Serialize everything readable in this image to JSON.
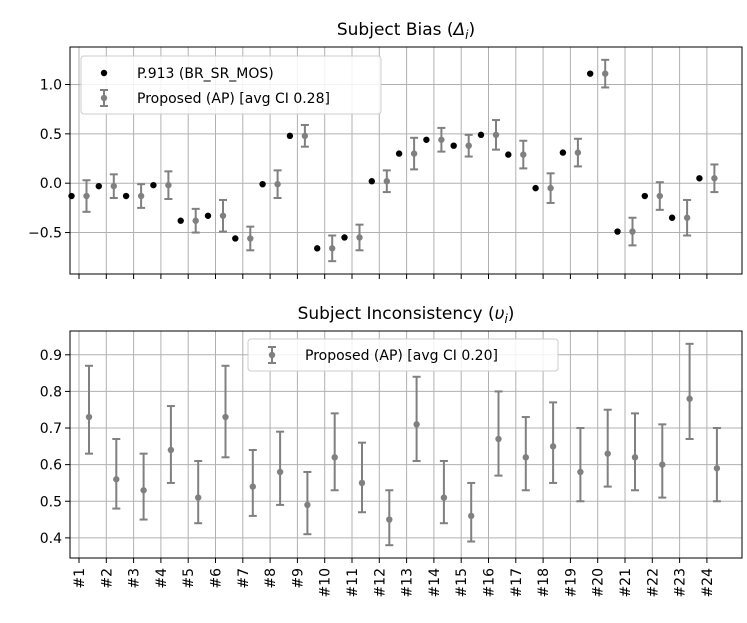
{
  "chart_data": [
    {
      "type": "scatter",
      "title": "Subject Bias (Δᵢ)",
      "title_parts": {
        "text": "Subject Bias (",
        "symbol": "Δ",
        "sub": "i",
        "close": ")"
      },
      "xlabel": "",
      "ylabel": "",
      "ylim": [
        -0.92,
        1.38
      ],
      "yticks": [
        -0.5,
        0.0,
        0.5,
        1.0
      ],
      "yticklabels": [
        "−0.5",
        "0.0",
        "0.5",
        "1.0"
      ],
      "grid": true,
      "legend_position": "top-left",
      "categories": [
        "#1",
        "#2",
        "#3",
        "#4",
        "#5",
        "#6",
        "#7",
        "#8",
        "#9",
        "#10",
        "#11",
        "#12",
        "#13",
        "#14",
        "#15",
        "#16",
        "#17",
        "#18",
        "#19",
        "#20",
        "#21",
        "#22",
        "#23",
        "#24"
      ],
      "series": [
        {
          "name": "P.913 (BR_SR_MOS)",
          "color": "#000000",
          "values": [
            -0.13,
            -0.03,
            -0.13,
            -0.02,
            -0.38,
            -0.33,
            -0.56,
            -0.01,
            0.48,
            -0.66,
            -0.55,
            0.02,
            0.3,
            0.44,
            0.38,
            0.49,
            0.29,
            -0.05,
            0.31,
            1.11,
            -0.49,
            -0.13,
            -0.35,
            0.05
          ]
        },
        {
          "name": "Proposed (AP) [avg CI 0.28]",
          "color": "#808080",
          "values": [
            -0.13,
            -0.03,
            -0.13,
            -0.02,
            -0.38,
            -0.33,
            -0.56,
            -0.01,
            0.48,
            -0.66,
            -0.55,
            0.02,
            0.3,
            0.44,
            0.38,
            0.49,
            0.29,
            -0.05,
            0.31,
            1.11,
            -0.49,
            -0.13,
            -0.35,
            0.05
          ],
          "ci_half": [
            0.16,
            0.12,
            0.12,
            0.14,
            0.12,
            0.16,
            0.12,
            0.14,
            0.11,
            0.13,
            0.13,
            0.11,
            0.16,
            0.12,
            0.11,
            0.15,
            0.14,
            0.15,
            0.14,
            0.14,
            0.14,
            0.14,
            0.18,
            0.14
          ]
        }
      ]
    },
    {
      "type": "scatter",
      "title": "Subject Inconsistency (υᵢ)",
      "title_parts": {
        "text": "Subject Inconsistency (",
        "symbol": "υ",
        "sub": "i",
        "close": ")"
      },
      "xlabel": "",
      "ylabel": "",
      "ylim": [
        0.345,
        0.965
      ],
      "yticks": [
        0.4,
        0.5,
        0.6,
        0.7,
        0.8,
        0.9
      ],
      "yticklabels": [
        "0.4",
        "0.5",
        "0.6",
        "0.7",
        "0.8",
        "0.9"
      ],
      "grid": true,
      "legend_position": "top-center",
      "categories": [
        "#1",
        "#2",
        "#3",
        "#4",
        "#5",
        "#6",
        "#7",
        "#8",
        "#9",
        "#10",
        "#11",
        "#12",
        "#13",
        "#14",
        "#15",
        "#16",
        "#17",
        "#18",
        "#19",
        "#20",
        "#21",
        "#22",
        "#23",
        "#24"
      ],
      "series": [
        {
          "name": "Proposed (AP) [avg CI 0.20]",
          "color": "#808080",
          "values": [
            0.73,
            0.56,
            0.53,
            0.64,
            0.51,
            0.73,
            0.54,
            0.58,
            0.49,
            0.62,
            0.55,
            0.45,
            0.71,
            0.51,
            0.46,
            0.67,
            0.62,
            0.65,
            0.58,
            0.63,
            0.62,
            0.6,
            0.78,
            0.59
          ],
          "lower": [
            0.63,
            0.48,
            0.45,
            0.55,
            0.44,
            0.62,
            0.46,
            0.49,
            0.41,
            0.53,
            0.47,
            0.38,
            0.61,
            0.44,
            0.39,
            0.57,
            0.53,
            0.55,
            0.5,
            0.54,
            0.53,
            0.51,
            0.67,
            0.5
          ],
          "upper": [
            0.87,
            0.67,
            0.63,
            0.76,
            0.61,
            0.87,
            0.64,
            0.69,
            0.58,
            0.74,
            0.66,
            0.53,
            0.84,
            0.61,
            0.55,
            0.8,
            0.73,
            0.77,
            0.7,
            0.75,
            0.74,
            0.71,
            0.93,
            0.7
          ]
        }
      ]
    }
  ]
}
